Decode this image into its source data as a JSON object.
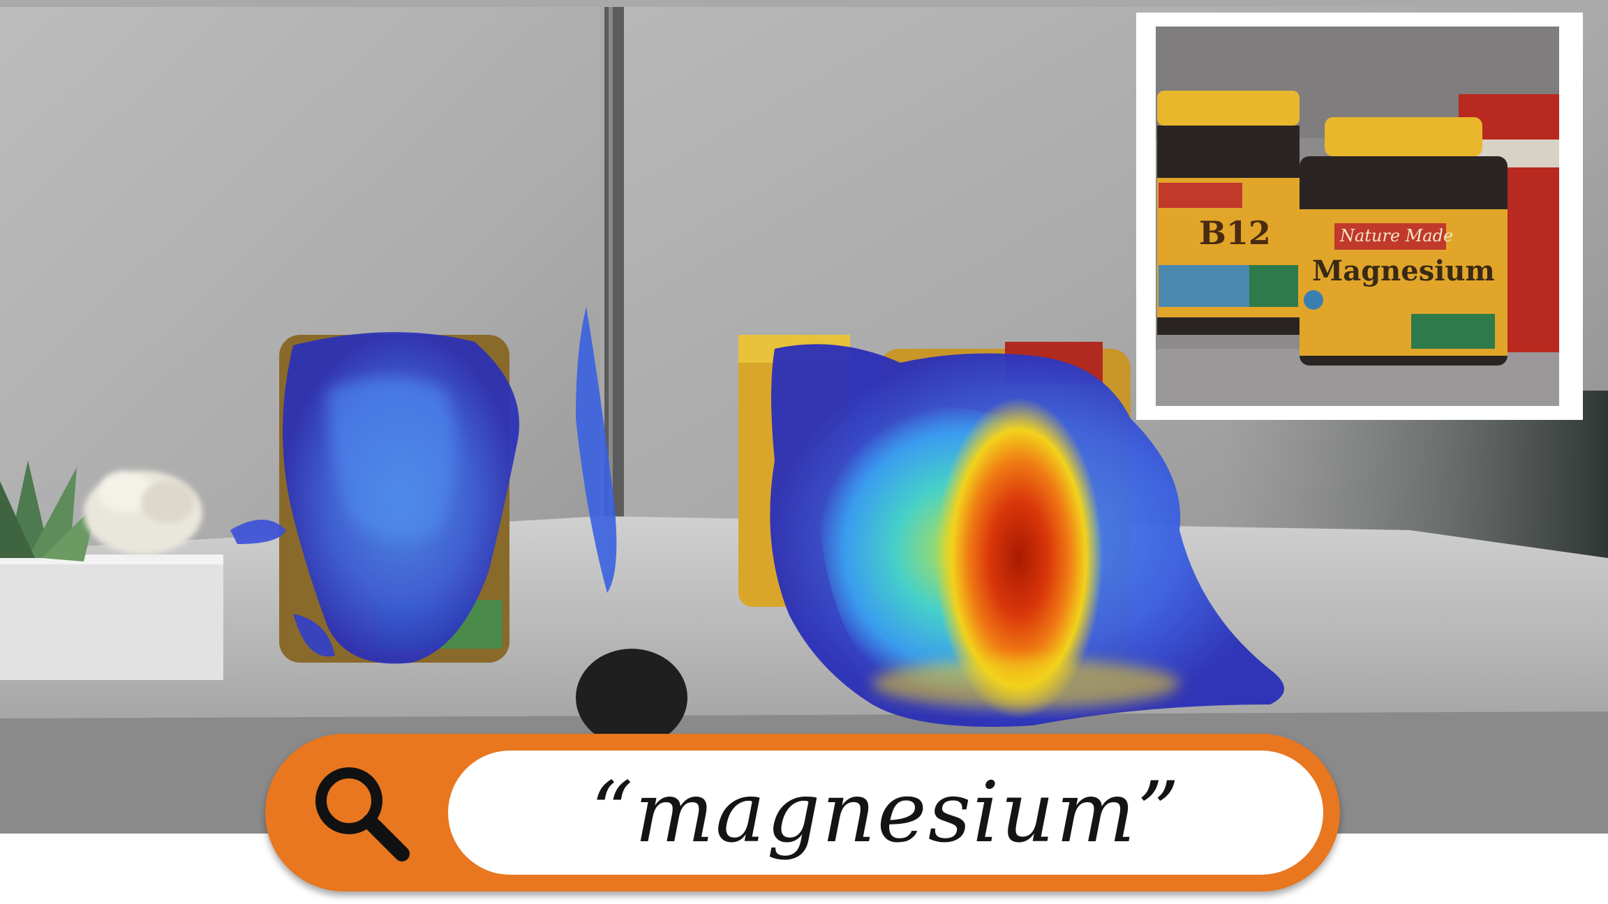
{
  "search": {
    "query": "“magnesium”",
    "icon": "search-icon",
    "accent_color": "#e8771f"
  },
  "inset": {
    "label_left_bottle": "B12",
    "label_right_bottle": "Magnesium",
    "brand_text": "Nature Made"
  },
  "heatmap": {
    "colormap": "jet",
    "highest_activation_on": "Magnesium bottle"
  }
}
